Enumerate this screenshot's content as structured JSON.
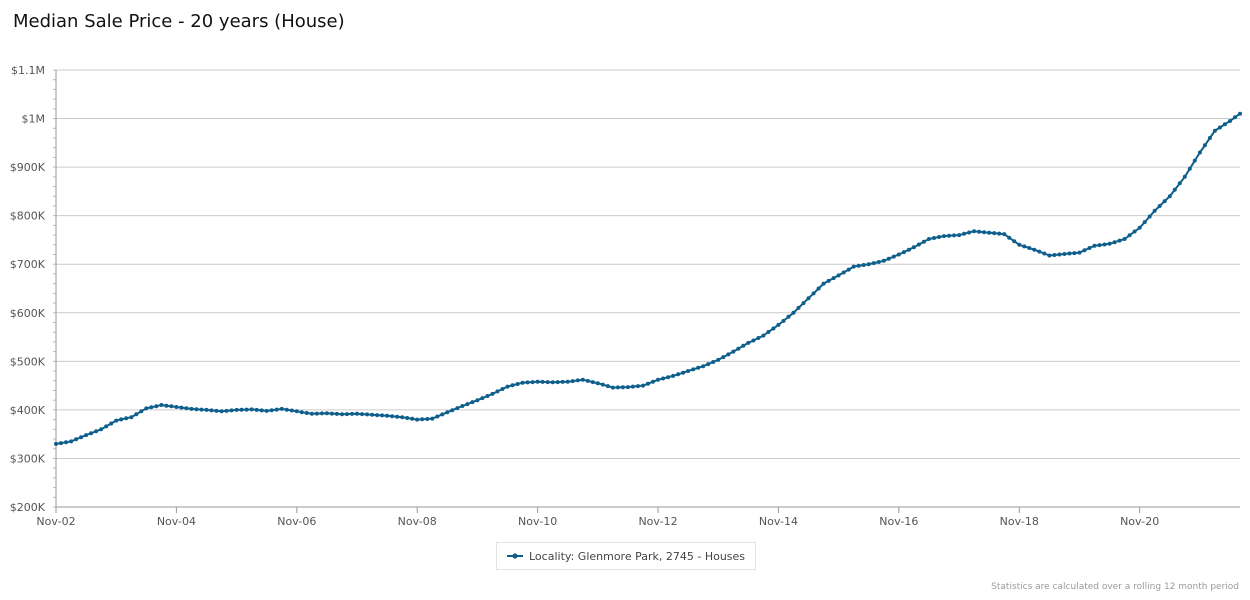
{
  "page": {
    "title": "Median Sale Price - 20 years (House)",
    "footnote": "Statistics are calculated over a rolling 12 month period"
  },
  "colors": {
    "line": "#0f5f8c",
    "grid": "#cccccc",
    "axis": "#999999"
  },
  "legend": {
    "label": "Locality: Glenmore Park, 2745 - Houses",
    "icon": "line-with-marker-icon"
  },
  "chart_data": {
    "type": "line",
    "title": "Median Sale Price - 20 years (House)",
    "xlabel": "",
    "ylabel": "",
    "ylim": [
      200000,
      1100000
    ],
    "yticks": [
      200000,
      300000,
      400000,
      500000,
      600000,
      700000,
      800000,
      900000,
      1000000,
      1100000
    ],
    "ytick_labels": [
      "$200K",
      "$300K",
      "$400K",
      "$500K",
      "$600K",
      "$700K",
      "$800K",
      "$900K",
      "$1M",
      "$1.1M"
    ],
    "xlim": [
      "2002-11",
      "2022-07"
    ],
    "xticks": [
      "2002-11",
      "2004-11",
      "2006-11",
      "2008-11",
      "2010-11",
      "2012-11",
      "2014-11",
      "2016-11",
      "2018-11",
      "2020-11"
    ],
    "xtick_labels": [
      "Nov-02",
      "Nov-04",
      "Nov-06",
      "Nov-08",
      "Nov-10",
      "Nov-12",
      "Nov-14",
      "Nov-16",
      "Nov-18",
      "Nov-20"
    ],
    "grid": "horizontal",
    "legend_position": "bottom-center",
    "series": [
      {
        "name": "Locality: Glenmore Park, 2745 - Houses",
        "points": [
          [
            "2002-11",
            330000
          ],
          [
            "2003-02",
            335000
          ],
          [
            "2003-05",
            348000
          ],
          [
            "2003-08",
            360000
          ],
          [
            "2003-11",
            378000
          ],
          [
            "2004-02",
            385000
          ],
          [
            "2004-05",
            403000
          ],
          [
            "2004-08",
            410000
          ],
          [
            "2004-11",
            406000
          ],
          [
            "2005-02",
            402000
          ],
          [
            "2005-05",
            400000
          ],
          [
            "2005-08",
            397000
          ],
          [
            "2005-11",
            400000
          ],
          [
            "2006-02",
            401000
          ],
          [
            "2006-05",
            398000
          ],
          [
            "2006-08",
            402000
          ],
          [
            "2006-11",
            397000
          ],
          [
            "2007-02",
            392000
          ],
          [
            "2007-05",
            393000
          ],
          [
            "2007-08",
            391000
          ],
          [
            "2007-11",
            392000
          ],
          [
            "2008-02",
            390000
          ],
          [
            "2008-05",
            388000
          ],
          [
            "2008-08",
            385000
          ],
          [
            "2008-11",
            380000
          ],
          [
            "2009-02",
            382000
          ],
          [
            "2009-05",
            395000
          ],
          [
            "2009-08",
            408000
          ],
          [
            "2009-11",
            420000
          ],
          [
            "2010-02",
            433000
          ],
          [
            "2010-05",
            448000
          ],
          [
            "2010-08",
            456000
          ],
          [
            "2010-11",
            458000
          ],
          [
            "2011-02",
            457000
          ],
          [
            "2011-05",
            458000
          ],
          [
            "2011-08",
            462000
          ],
          [
            "2011-11",
            455000
          ],
          [
            "2012-02",
            446000
          ],
          [
            "2012-05",
            447000
          ],
          [
            "2012-08",
            450000
          ],
          [
            "2012-11",
            462000
          ],
          [
            "2013-02",
            470000
          ],
          [
            "2013-05",
            480000
          ],
          [
            "2013-08",
            490000
          ],
          [
            "2013-11",
            503000
          ],
          [
            "2014-02",
            520000
          ],
          [
            "2014-05",
            538000
          ],
          [
            "2014-08",
            553000
          ],
          [
            "2014-11",
            575000
          ],
          [
            "2015-02",
            600000
          ],
          [
            "2015-05",
            630000
          ],
          [
            "2015-08",
            660000
          ],
          [
            "2015-11",
            677000
          ],
          [
            "2016-02",
            695000
          ],
          [
            "2016-05",
            700000
          ],
          [
            "2016-08",
            707000
          ],
          [
            "2016-11",
            720000
          ],
          [
            "2017-02",
            735000
          ],
          [
            "2017-05",
            752000
          ],
          [
            "2017-08",
            758000
          ],
          [
            "2017-11",
            760000
          ],
          [
            "2018-02",
            768000
          ],
          [
            "2018-05",
            765000
          ],
          [
            "2018-08",
            762000
          ],
          [
            "2018-11",
            740000
          ],
          [
            "2019-02",
            730000
          ],
          [
            "2019-05",
            718000
          ],
          [
            "2019-08",
            721000
          ],
          [
            "2019-11",
            724000
          ],
          [
            "2020-02",
            738000
          ],
          [
            "2020-05",
            742000
          ],
          [
            "2020-08",
            752000
          ],
          [
            "2020-11",
            775000
          ],
          [
            "2021-02",
            810000
          ],
          [
            "2021-05",
            840000
          ],
          [
            "2021-08",
            880000
          ],
          [
            "2021-11",
            930000
          ],
          [
            "2022-02",
            975000
          ],
          [
            "2022-05",
            995000
          ],
          [
            "2022-07",
            1010000
          ]
        ]
      }
    ]
  }
}
